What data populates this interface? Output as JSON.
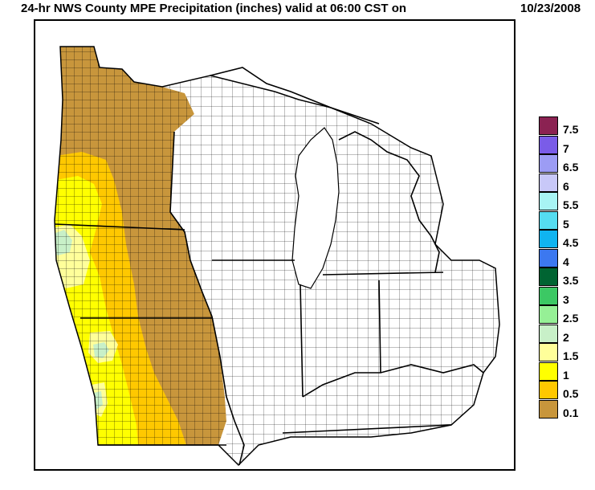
{
  "header": {
    "title": "24-hr NWS County MPE Precipitation (inches) valid at 06:00 CST on",
    "date": "10/23/2008"
  },
  "legend": {
    "items": [
      {
        "label": "7.5",
        "color": "#8b2252"
      },
      {
        "label": "7",
        "color": "#7a5ce8"
      },
      {
        "label": "6.5",
        "color": "#9c9cf4"
      },
      {
        "label": "6",
        "color": "#c8c8f8"
      },
      {
        "label": "5.5",
        "color": "#a8f4f4"
      },
      {
        "label": "5",
        "color": "#55dcf0"
      },
      {
        "label": "4.5",
        "color": "#10b4f0"
      },
      {
        "label": "4",
        "color": "#3c78f0"
      },
      {
        "label": "3.5",
        "color": "#006432"
      },
      {
        "label": "3",
        "color": "#3cc864"
      },
      {
        "label": "2.5",
        "color": "#96f096"
      },
      {
        "label": "2",
        "color": "#c8f0c8"
      },
      {
        "label": "1.5",
        "color": "#ffff9a"
      },
      {
        "label": "1",
        "color": "#ffff00"
      },
      {
        "label": "0.5",
        "color": "#ffc800"
      },
      {
        "label": "0.1",
        "color": "#c8963c"
      }
    ]
  },
  "map": {
    "colors": {
      "brown": "#c8963c",
      "orange": "#ffc800",
      "yellow": "#ffff00",
      "lightyellow": "#ffff9a",
      "lightgreen": "#c8f0c8",
      "border": "#000000"
    }
  }
}
